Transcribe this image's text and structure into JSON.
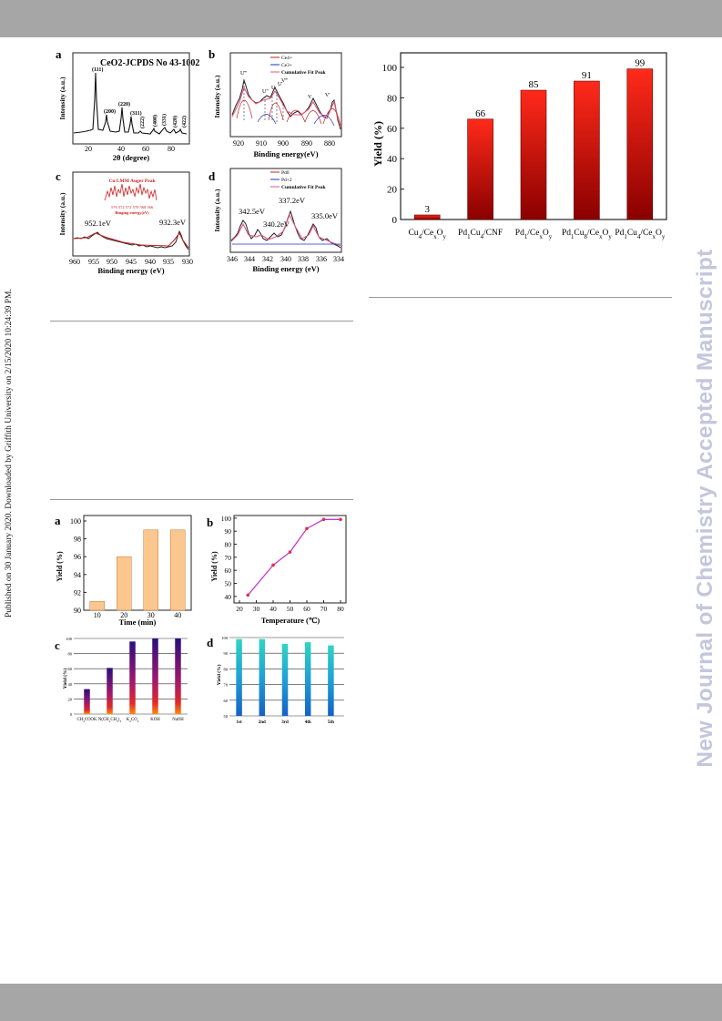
{
  "page": {
    "side_note": "Published on 30 January 2020. Downloaded by Griffith University on 2/15/2020 10:24:39 PM.",
    "watermark": "New Journal of Chemistry Accepted Manuscript",
    "colors": {
      "band": "#a6a6a6",
      "watermark": "#c4c6dc"
    }
  },
  "xps_figure": {
    "a": {
      "label": "a",
      "title": "CeO2-JCPDS No 43-1002",
      "ylabel": "Intensity (a.u.)",
      "xlabel": "2θ (degree)",
      "x_ticks": [
        "20",
        "40",
        "60",
        "80"
      ],
      "peaks": [
        "(111)",
        "(200)",
        "(220)",
        "(311)",
        "(222)",
        "(400)",
        "(331)",
        "(420)",
        "(422)"
      ]
    },
    "b": {
      "label": "b",
      "ylabel": "Intensity (a.u.)",
      "xlabel": "Binding energy(eV)",
      "x_ticks": [
        "920",
        "910",
        "900",
        "890",
        "880"
      ],
      "legend": [
        "Ce4+",
        "Ce3+",
        "Cumulative Fit Peak"
      ],
      "peak_labels": [
        "U‴",
        "U″",
        "U",
        "U'",
        "V‴",
        "V",
        "V'"
      ]
    },
    "c": {
      "label": "c",
      "ylabel": "Intensity (a.u.)",
      "xlabel": "Binding energy (eV)",
      "x_ticks": [
        "960",
        "955",
        "950",
        "945",
        "940",
        "935",
        "930"
      ],
      "inset_title": "Cu LMM Auger Peak",
      "inset_ticks": "576 572 572 570 568 566",
      "inset_xlabel": "Binging energy(eV)",
      "peak_labels": [
        "952.1eV",
        "932.3eV"
      ]
    },
    "d": {
      "label": "d",
      "ylabel": "Intensity (a.u.)",
      "xlabel": "Binding energy (eV)",
      "x_ticks": [
        "346",
        "344",
        "342",
        "340",
        "338",
        "336",
        "334"
      ],
      "legend": [
        "Pd0",
        "Pd+2",
        "Cumulative Fit Peak"
      ],
      "peak_labels": [
        "342.5eV",
        "340.2eV",
        "337.2eV",
        "335.0eV"
      ]
    }
  },
  "yield_chart": {
    "ylabel": "Yield (%)",
    "y_ticks": [
      "0",
      "20",
      "40",
      "60",
      "80",
      "100"
    ],
    "chart_data": {
      "type": "bar",
      "categories": [
        "Cu4/CexOy",
        "Pd1Cu4/CNF",
        "Pd1/CexOy",
        "Pd1Cu8/CexOy",
        "Pd1Cu4/CexOy"
      ],
      "values": [
        3,
        66,
        85,
        91,
        99
      ],
      "value_labels": [
        "3",
        "66",
        "85",
        "91",
        "99"
      ],
      "ylabel": "Yield (%)",
      "ylim": [
        0,
        100
      ],
      "colors": {
        "top": "#ff2a1a",
        "bottom": "#8a0000"
      }
    }
  },
  "optimization_figure": {
    "a": {
      "label": "a",
      "ylabel": "Yield (%)",
      "xlabel": "Time (min)",
      "y_ticks": [
        "90",
        "92",
        "94",
        "96",
        "98",
        "100"
      ],
      "chart_data": {
        "type": "bar",
        "categories": [
          "10",
          "20",
          "30",
          "40"
        ],
        "values": [
          91,
          96,
          99,
          99
        ],
        "ylim": [
          90,
          100
        ],
        "color": "#fcc78f"
      }
    },
    "b": {
      "label": "b",
      "ylabel": "Yield (%)",
      "xlabel": "Temperature (℃)",
      "x_ticks": [
        "20",
        "30",
        "40",
        "50",
        "60",
        "70",
        "80"
      ],
      "y_ticks": [
        "40",
        "50",
        "60",
        "70",
        "80",
        "90",
        "100"
      ],
      "chart_data": {
        "type": "line",
        "x": [
          25,
          40,
          50,
          60,
          70,
          80
        ],
        "y": [
          41,
          64,
          74,
          92,
          99,
          99
        ],
        "xlim": [
          20,
          80
        ],
        "ylim": [
          35,
          102
        ],
        "color": "#c63cc6"
      }
    },
    "c": {
      "label": "c",
      "ylabel": "Yield (%)",
      "y_ticks": [
        "0",
        "20",
        "40",
        "60",
        "80",
        "100"
      ],
      "chart_data": {
        "type": "bar",
        "categories": [
          "CH3COOK",
          "N(CH2CH3)3",
          "K2CO3",
          "KOH",
          "NaOH"
        ],
        "values": [
          33,
          61,
          96,
          100,
          100
        ],
        "ylim": [
          0,
          100
        ]
      }
    },
    "d": {
      "label": "d",
      "ylabel": "Yield (%)",
      "y_ticks": [
        "50",
        "60",
        "70",
        "80",
        "90",
        "100"
      ],
      "chart_data": {
        "type": "bar",
        "categories": [
          "1st",
          "2nd",
          "3rd",
          "4th",
          "5th"
        ],
        "values": [
          99,
          99,
          96,
          97,
          95
        ],
        "ylim": [
          50,
          100
        ]
      }
    }
  }
}
